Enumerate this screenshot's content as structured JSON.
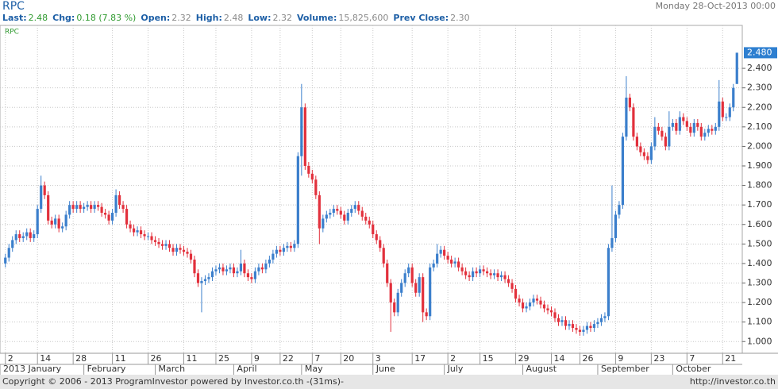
{
  "header": {
    "title": "RPC",
    "date": "Monday 28-Oct-2013 00:00",
    "fields": [
      {
        "label": "Last:",
        "value": "2.48"
      },
      {
        "label": "Chg:",
        "value": "0.18 (7.83 %)"
      },
      {
        "label": "Open:",
        "value": "2.32"
      },
      {
        "label": "High:",
        "value": "2.48"
      },
      {
        "label": "Low:",
        "value": "2.32"
      },
      {
        "label": "Volume:",
        "value": "15,825,600"
      },
      {
        "label": "Prev Close:",
        "value": "2.30"
      }
    ]
  },
  "chart_data": {
    "type": "candlestick",
    "name": "RPC",
    "up_color": "#3b7fcc",
    "down_color": "#e2303c",
    "last_label": "2.480",
    "ylim": [
      0.94,
      2.62
    ],
    "yticks": [
      {
        "value": 1.0,
        "label": "1.000"
      },
      {
        "value": 1.1,
        "label": "1.100"
      },
      {
        "value": 1.2,
        "label": "1.200"
      },
      {
        "value": 1.3,
        "label": "1.300"
      },
      {
        "value": 1.4,
        "label": "1.400"
      },
      {
        "value": 1.5,
        "label": "1.500"
      },
      {
        "value": 1.6,
        "label": "1.600"
      },
      {
        "value": 1.7,
        "label": "1.700"
      },
      {
        "value": 1.8,
        "label": "1.800"
      },
      {
        "value": 1.9,
        "label": "1.900"
      },
      {
        "value": 2.0,
        "label": "2.000"
      },
      {
        "value": 2.1,
        "label": "2.100"
      },
      {
        "value": 2.2,
        "label": "2.200"
      },
      {
        "value": 2.3,
        "label": "2.300"
      },
      {
        "value": 2.4,
        "label": "2.400"
      }
    ],
    "xlim": [
      -1.5,
      206.5
    ],
    "xticks": [
      {
        "value": 0,
        "label": "2"
      },
      {
        "value": 9,
        "label": "14"
      },
      {
        "value": 19,
        "label": "28"
      },
      {
        "value": 30,
        "label": "11"
      },
      {
        "value": 40,
        "label": "26"
      },
      {
        "value": 50,
        "label": "11"
      },
      {
        "value": 59,
        "label": "25"
      },
      {
        "value": 69,
        "label": "9"
      },
      {
        "value": 77,
        "label": "22"
      },
      {
        "value": 86,
        "label": "7"
      },
      {
        "value": 94,
        "label": "20"
      },
      {
        "value": 103,
        "label": "3"
      },
      {
        "value": 114,
        "label": "17"
      },
      {
        "value": 124,
        "label": "2"
      },
      {
        "value": 133,
        "label": "15"
      },
      {
        "value": 143,
        "label": "29"
      },
      {
        "value": 153,
        "label": "14"
      },
      {
        "value": 161,
        "label": "26"
      },
      {
        "value": 171,
        "label": "9"
      },
      {
        "value": 181,
        "label": "23"
      },
      {
        "value": 191,
        "label": "7"
      },
      {
        "value": 201,
        "label": "21"
      }
    ],
    "month_ticks": [
      {
        "value": -1.5,
        "label": "2013 January"
      },
      {
        "value": 22,
        "label": "February"
      },
      {
        "value": 42,
        "label": "March"
      },
      {
        "value": 64,
        "label": "April"
      },
      {
        "value": 83,
        "label": "May"
      },
      {
        "value": 103,
        "label": "June"
      },
      {
        "value": 123,
        "label": "July"
      },
      {
        "value": 145,
        "label": "August"
      },
      {
        "value": 166,
        "label": "September"
      },
      {
        "value": 187,
        "label": "October"
      }
    ],
    "open": [
      1.4,
      1.43,
      1.48,
      1.52,
      1.55,
      1.53,
      1.54,
      1.56,
      1.53,
      1.55,
      1.68,
      1.8,
      1.75,
      1.62,
      1.6,
      1.63,
      1.58,
      1.59,
      1.65,
      1.7,
      1.68,
      1.7,
      1.68,
      1.69,
      1.7,
      1.68,
      1.7,
      1.69,
      1.66,
      1.65,
      1.62,
      1.66,
      1.75,
      1.7,
      1.68,
      1.6,
      1.58,
      1.56,
      1.57,
      1.55,
      1.54,
      1.54,
      1.52,
      1.51,
      1.5,
      1.49,
      1.5,
      1.48,
      1.46,
      1.48,
      1.47,
      1.46,
      1.45,
      1.42,
      1.35,
      1.3,
      1.31,
      1.32,
      1.33,
      1.36,
      1.37,
      1.38,
      1.36,
      1.37,
      1.38,
      1.35,
      1.36,
      1.4,
      1.35,
      1.33,
      1.32,
      1.36,
      1.38,
      1.37,
      1.4,
      1.42,
      1.45,
      1.47,
      1.46,
      1.48,
      1.49,
      1.48,
      1.5,
      1.95,
      2.2,
      1.9,
      1.86,
      1.83,
      1.75,
      1.58,
      1.63,
      1.65,
      1.66,
      1.68,
      1.67,
      1.65,
      1.62,
      1.66,
      1.68,
      1.7,
      1.67,
      1.64,
      1.62,
      1.6,
      1.55,
      1.52,
      1.48,
      1.4,
      1.3,
      1.2,
      1.15,
      1.25,
      1.3,
      1.35,
      1.38,
      1.3,
      1.25,
      1.33,
      1.15,
      1.13,
      1.38,
      1.4,
      1.45,
      1.47,
      1.44,
      1.42,
      1.4,
      1.41,
      1.38,
      1.36,
      1.34,
      1.33,
      1.36,
      1.35,
      1.37,
      1.36,
      1.35,
      1.34,
      1.35,
      1.33,
      1.34,
      1.32,
      1.3,
      1.27,
      1.22,
      1.2,
      1.17,
      1.18,
      1.2,
      1.22,
      1.21,
      1.19,
      1.17,
      1.16,
      1.15,
      1.12,
      1.1,
      1.11,
      1.08,
      1.09,
      1.07,
      1.06,
      1.05,
      1.06,
      1.08,
      1.07,
      1.09,
      1.1,
      1.12,
      1.13,
      1.48,
      1.53,
      1.65,
      1.7,
      2.05,
      2.25,
      2.2,
      2.05,
      2.0,
      1.97,
      1.95,
      1.93,
      2.0,
      2.1,
      2.08,
      2.05,
      2.0,
      2.1,
      2.12,
      2.08,
      2.15,
      2.13,
      2.1,
      2.07,
      2.12,
      2.1,
      2.05,
      2.07,
      2.09,
      2.08,
      2.1,
      2.23,
      2.15,
      2.15,
      2.2,
      2.32
    ],
    "high": [
      1.45,
      1.5,
      1.54,
      1.57,
      1.57,
      1.56,
      1.58,
      1.58,
      1.57,
      1.7,
      1.85,
      1.82,
      1.77,
      1.64,
      1.65,
      1.65,
      1.61,
      1.67,
      1.72,
      1.72,
      1.72,
      1.72,
      1.71,
      1.72,
      1.72,
      1.72,
      1.72,
      1.71,
      1.68,
      1.67,
      1.68,
      1.78,
      1.77,
      1.72,
      1.7,
      1.62,
      1.6,
      1.59,
      1.59,
      1.57,
      1.56,
      1.56,
      1.54,
      1.53,
      1.52,
      1.52,
      1.52,
      1.5,
      1.5,
      1.5,
      1.49,
      1.48,
      1.47,
      1.44,
      1.37,
      1.33,
      1.34,
      1.35,
      1.38,
      1.39,
      1.4,
      1.4,
      1.39,
      1.4,
      1.4,
      1.38,
      1.47,
      1.42,
      1.37,
      1.35,
      1.38,
      1.4,
      1.4,
      1.42,
      1.44,
      1.47,
      1.49,
      1.49,
      1.5,
      1.51,
      1.51,
      1.52,
      1.97,
      2.32,
      2.22,
      1.92,
      1.88,
      1.85,
      1.77,
      1.65,
      1.67,
      1.68,
      1.7,
      1.7,
      1.69,
      1.67,
      1.68,
      1.7,
      1.72,
      1.72,
      1.69,
      1.66,
      1.64,
      1.62,
      1.57,
      1.54,
      1.5,
      1.42,
      1.32,
      1.22,
      1.27,
      1.32,
      1.37,
      1.4,
      1.4,
      1.32,
      1.35,
      1.35,
      1.17,
      1.4,
      1.42,
      1.5,
      1.49,
      1.49,
      1.46,
      1.44,
      1.43,
      1.43,
      1.4,
      1.38,
      1.36,
      1.38,
      1.38,
      1.39,
      1.39,
      1.38,
      1.37,
      1.37,
      1.37,
      1.36,
      1.36,
      1.34,
      1.32,
      1.29,
      1.24,
      1.22,
      1.2,
      1.22,
      1.24,
      1.24,
      1.23,
      1.21,
      1.19,
      1.18,
      1.17,
      1.14,
      1.13,
      1.13,
      1.11,
      1.11,
      1.09,
      1.08,
      1.08,
      1.1,
      1.1,
      1.11,
      1.12,
      1.14,
      1.15,
      1.5,
      1.8,
      1.67,
      1.72,
      2.07,
      2.36,
      2.27,
      2.22,
      2.07,
      2.02,
      1.99,
      1.97,
      2.02,
      2.15,
      2.12,
      2.1,
      2.07,
      2.18,
      2.14,
      2.14,
      2.18,
      2.17,
      2.15,
      2.12,
      2.14,
      2.14,
      2.12,
      2.09,
      2.11,
      2.11,
      2.12,
      2.34,
      2.25,
      2.17,
      2.22,
      2.32,
      2.48
    ],
    "low": [
      1.38,
      1.41,
      1.46,
      1.5,
      1.51,
      1.51,
      1.52,
      1.51,
      1.51,
      1.53,
      1.66,
      1.73,
      1.6,
      1.58,
      1.58,
      1.56,
      1.56,
      1.57,
      1.63,
      1.66,
      1.66,
      1.66,
      1.66,
      1.67,
      1.66,
      1.66,
      1.67,
      1.64,
      1.63,
      1.6,
      1.6,
      1.64,
      1.68,
      1.66,
      1.58,
      1.56,
      1.54,
      1.54,
      1.53,
      1.52,
      1.52,
      1.5,
      1.49,
      1.48,
      1.47,
      1.47,
      1.46,
      1.44,
      1.44,
      1.45,
      1.44,
      1.43,
      1.4,
      1.33,
      1.28,
      1.15,
      1.29,
      1.3,
      1.31,
      1.34,
      1.35,
      1.34,
      1.34,
      1.35,
      1.33,
      1.33,
      1.34,
      1.33,
      1.31,
      1.3,
      1.3,
      1.34,
      1.35,
      1.35,
      1.38,
      1.4,
      1.43,
      1.44,
      1.44,
      1.46,
      1.46,
      1.46,
      1.48,
      1.85,
      1.88,
      1.84,
      1.81,
      1.73,
      1.5,
      1.56,
      1.61,
      1.63,
      1.64,
      1.65,
      1.63,
      1.6,
      1.6,
      1.64,
      1.66,
      1.65,
      1.62,
      1.6,
      1.58,
      1.53,
      1.5,
      1.46,
      1.38,
      1.28,
      1.05,
      1.13,
      1.13,
      1.23,
      1.28,
      1.33,
      1.28,
      1.23,
      1.23,
      1.1,
      1.11,
      1.11,
      1.36,
      1.38,
      1.43,
      1.42,
      1.4,
      1.38,
      1.38,
      1.36,
      1.34,
      1.32,
      1.31,
      1.31,
      1.33,
      1.33,
      1.34,
      1.33,
      1.32,
      1.32,
      1.31,
      1.31,
      1.3,
      1.28,
      1.25,
      1.2,
      1.18,
      1.15,
      1.15,
      1.16,
      1.18,
      1.19,
      1.17,
      1.15,
      1.14,
      1.13,
      1.1,
      1.08,
      1.08,
      1.06,
      1.06,
      1.05,
      1.04,
      1.03,
      1.03,
      1.04,
      1.05,
      1.05,
      1.07,
      1.08,
      1.1,
      1.11,
      1.46,
      1.51,
      1.63,
      1.68,
      2.03,
      2.18,
      2.03,
      1.98,
      1.95,
      1.93,
      1.91,
      1.91,
      1.98,
      2.06,
      2.03,
      1.98,
      1.98,
      2.08,
      2.06,
      2.06,
      2.11,
      2.08,
      2.05,
      2.05,
      2.08,
      2.03,
      2.03,
      2.05,
      2.06,
      2.06,
      2.08,
      2.13,
      2.13,
      2.13,
      2.18,
      2.32
    ],
    "close": [
      1.43,
      1.48,
      1.52,
      1.55,
      1.53,
      1.54,
      1.56,
      1.53,
      1.55,
      1.68,
      1.8,
      1.75,
      1.62,
      1.6,
      1.63,
      1.58,
      1.59,
      1.65,
      1.7,
      1.68,
      1.7,
      1.68,
      1.69,
      1.7,
      1.68,
      1.7,
      1.69,
      1.66,
      1.65,
      1.62,
      1.66,
      1.75,
      1.7,
      1.68,
      1.6,
      1.58,
      1.56,
      1.57,
      1.55,
      1.54,
      1.54,
      1.52,
      1.51,
      1.5,
      1.49,
      1.5,
      1.48,
      1.46,
      1.48,
      1.47,
      1.46,
      1.45,
      1.42,
      1.35,
      1.3,
      1.31,
      1.32,
      1.33,
      1.36,
      1.37,
      1.38,
      1.36,
      1.37,
      1.38,
      1.35,
      1.36,
      1.4,
      1.35,
      1.33,
      1.32,
      1.36,
      1.38,
      1.37,
      1.4,
      1.42,
      1.45,
      1.47,
      1.46,
      1.48,
      1.49,
      1.48,
      1.5,
      1.95,
      2.2,
      1.9,
      1.86,
      1.83,
      1.75,
      1.58,
      1.63,
      1.65,
      1.66,
      1.68,
      1.67,
      1.65,
      1.62,
      1.66,
      1.68,
      1.7,
      1.67,
      1.64,
      1.62,
      1.6,
      1.55,
      1.52,
      1.48,
      1.4,
      1.3,
      1.2,
      1.15,
      1.25,
      1.3,
      1.35,
      1.38,
      1.3,
      1.25,
      1.33,
      1.15,
      1.13,
      1.38,
      1.4,
      1.45,
      1.47,
      1.44,
      1.42,
      1.4,
      1.41,
      1.38,
      1.36,
      1.34,
      1.33,
      1.36,
      1.35,
      1.37,
      1.36,
      1.35,
      1.34,
      1.35,
      1.33,
      1.34,
      1.32,
      1.3,
      1.27,
      1.22,
      1.2,
      1.17,
      1.18,
      1.2,
      1.22,
      1.21,
      1.19,
      1.17,
      1.16,
      1.15,
      1.12,
      1.1,
      1.11,
      1.08,
      1.09,
      1.07,
      1.06,
      1.05,
      1.06,
      1.08,
      1.07,
      1.09,
      1.1,
      1.12,
      1.13,
      1.48,
      1.53,
      1.65,
      1.7,
      2.05,
      2.25,
      2.2,
      2.05,
      2.0,
      1.97,
      1.95,
      1.93,
      2.0,
      2.1,
      2.08,
      2.05,
      2.0,
      2.1,
      2.12,
      2.08,
      2.15,
      2.13,
      2.1,
      2.07,
      2.12,
      2.1,
      2.05,
      2.07,
      2.09,
      2.08,
      2.1,
      2.23,
      2.15,
      2.15,
      2.2,
      2.3,
      2.48
    ]
  },
  "footer": {
    "copyright": "Copyright © 2006 - 2013 ProgramInvestor powered by Investor.co.th -(31ms)-",
    "url": "http://investor.co.th"
  }
}
